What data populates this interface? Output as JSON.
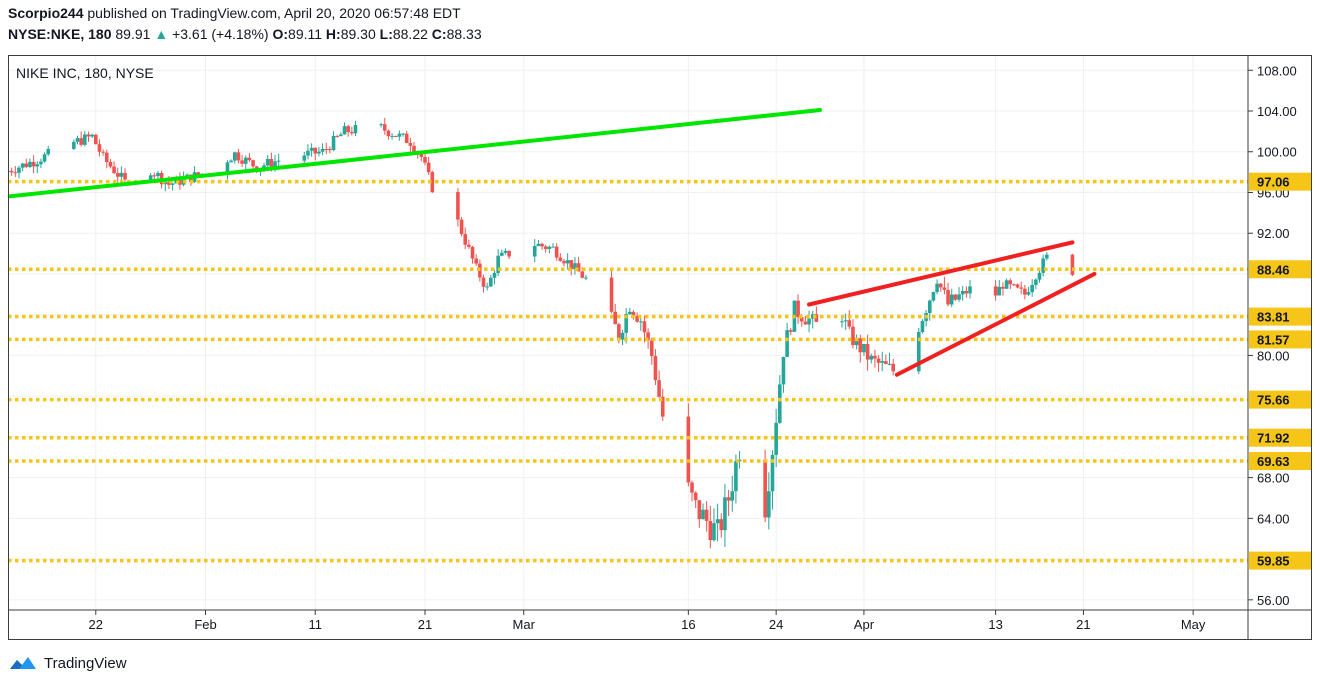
{
  "header": {
    "publisher": "Scorpio244",
    "published_text": "published on TradingView.com, April 20, 2020 06:57:48 EDT",
    "symbol": "NYSE:NKE, 180",
    "last": "89.91",
    "change_arrow": "▲",
    "change": "+3.61 (+4.18%)",
    "o_label": "O:",
    "o": "89.11",
    "h_label": "H:",
    "h": "89.30",
    "l_label": "L:",
    "l": "88.22",
    "c_label": "C:",
    "c": "88.33"
  },
  "footer": {
    "brand": "TradingView",
    "logo_icon": "tradingview-cloud-icon"
  },
  "colors": {
    "up": "#26a69a",
    "down": "#ef5350",
    "trend_green": "#00e600",
    "trend_red": "#f02020",
    "level": "#f5c518",
    "grid": "#eef0f3",
    "axis_text": "#131722",
    "frame": "#3d3d3d"
  },
  "chart_data": {
    "type": "candlestick",
    "title": "NIKE INC, 180, NYSE",
    "price_axis_ticks": [
      56.0,
      60.0,
      64.0,
      68.0,
      72.0,
      76.0,
      80.0,
      84.0,
      88.0,
      92.0,
      96.0,
      100.0,
      104.0,
      108.0
    ],
    "price_axis_labels": [
      "56.00",
      "64.00",
      "68.00",
      "80.00",
      "92.00",
      "96.00",
      "100.00",
      "104.00",
      "108.00"
    ],
    "ylim": [
      55.0,
      109.5
    ],
    "x_ticks": [
      {
        "label": "22",
        "date": "2020-01-22"
      },
      {
        "label": "Feb",
        "date": "2020-02-01"
      },
      {
        "label": "11",
        "date": "2020-02-11"
      },
      {
        "label": "21",
        "date": "2020-02-21"
      },
      {
        "label": "Mar",
        "date": "2020-03-01"
      },
      {
        "label": "16",
        "date": "2020-03-16"
      },
      {
        "label": "24",
        "date": "2020-03-24"
      },
      {
        "label": "Apr",
        "date": "2020-04-01"
      },
      {
        "label": "13",
        "date": "2020-04-13"
      },
      {
        "label": "21",
        "date": "2020-04-21"
      },
      {
        "label": "May",
        "date": "2020-05-01"
      }
    ],
    "xlim": [
      "2020-01-14",
      "2020-05-06"
    ],
    "horizontal_levels": [
      {
        "value": 97.06,
        "label": "97.06"
      },
      {
        "value": 88.46,
        "label": "88.46"
      },
      {
        "value": 83.81,
        "label": "83.81"
      },
      {
        "value": 81.57,
        "label": "81.57"
      },
      {
        "value": 75.66,
        "label": "75.66"
      },
      {
        "value": 71.92,
        "label": "71.92"
      },
      {
        "value": 69.63,
        "label": "69.63"
      },
      {
        "value": 59.85,
        "label": "59.85"
      }
    ],
    "trendlines": [
      {
        "color": "green",
        "from": {
          "date": "2020-01-14",
          "price": 95.6
        },
        "to": {
          "date": "2020-03-28",
          "price": 104.1
        }
      },
      {
        "color": "red",
        "from": {
          "date": "2020-03-27",
          "price": 85.0
        },
        "to": {
          "date": "2020-04-20",
          "price": 91.1
        }
      },
      {
        "color": "red",
        "from": {
          "date": "2020-04-04",
          "price": 78.1
        },
        "to": {
          "date": "2020-04-22",
          "price": 88.0
        }
      }
    ],
    "price_path": [
      [
        "2020-01-14",
        98.0
      ],
      [
        "2020-01-17",
        99.2
      ],
      [
        "2020-01-20",
        100.8
      ],
      [
        "2020-01-22",
        101.5
      ],
      [
        "2020-01-23",
        99.4
      ],
      [
        "2020-01-25",
        97.0
      ],
      [
        "2020-01-27",
        98.5
      ],
      [
        "2020-01-29",
        96.8
      ],
      [
        "2020-01-31",
        97.5
      ],
      [
        "2020-02-02",
        98.2
      ],
      [
        "2020-02-04",
        99.8
      ],
      [
        "2020-02-06",
        98.5
      ],
      [
        "2020-02-09",
        99.5
      ],
      [
        "2020-02-12",
        100.0
      ],
      [
        "2020-02-14",
        102.0
      ],
      [
        "2020-02-17",
        102.5
      ],
      [
        "2020-02-20",
        101.0
      ],
      [
        "2020-02-21",
        99.5
      ],
      [
        "2020-02-22",
        96.5
      ],
      [
        "2020-02-24",
        94.0
      ],
      [
        "2020-02-26",
        88.5
      ],
      [
        "2020-02-27",
        86.5
      ],
      [
        "2020-02-28",
        89.5
      ],
      [
        "2020-03-02",
        91.0
      ],
      [
        "2020-03-04",
        90.5
      ],
      [
        "2020-03-06",
        88.5
      ],
      [
        "2020-03-08",
        86.5
      ],
      [
        "2020-03-10",
        82.0
      ],
      [
        "2020-03-11",
        85.0
      ],
      [
        "2020-03-12",
        83.5
      ],
      [
        "2020-03-13",
        80.0
      ],
      [
        "2020-03-14",
        74.0
      ],
      [
        "2020-03-15",
        70.0
      ],
      [
        "2020-03-17",
        65.0
      ],
      [
        "2020-03-19",
        62.5
      ],
      [
        "2020-03-20",
        66.0
      ],
      [
        "2020-03-21",
        71.0
      ],
      [
        "2020-03-23",
        62.5
      ],
      [
        "2020-03-24",
        71.0
      ],
      [
        "2020-03-25",
        80.5
      ],
      [
        "2020-03-26",
        84.5
      ],
      [
        "2020-03-28",
        83.0
      ],
      [
        "2020-03-30",
        85.0
      ],
      [
        "2020-03-31",
        82.0
      ],
      [
        "2020-04-02",
        79.5
      ],
      [
        "2020-04-04",
        78.5
      ],
      [
        "2020-04-06",
        82.0
      ],
      [
        "2020-04-08",
        87.5
      ],
      [
        "2020-04-09",
        85.0
      ],
      [
        "2020-04-11",
        86.5
      ],
      [
        "2020-04-13",
        85.5
      ],
      [
        "2020-04-14",
        87.0
      ],
      [
        "2020-04-16",
        86.0
      ],
      [
        "2020-04-17",
        88.0
      ],
      [
        "2020-04-18",
        89.6
      ],
      [
        "2020-04-20",
        88.33
      ]
    ]
  }
}
